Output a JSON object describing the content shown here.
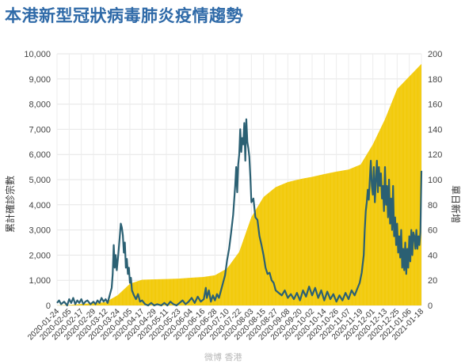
{
  "header": {
    "title": "本港新型冠狀病毒肺炎疫情趨勢"
  },
  "watermark": "微博 香港",
  "chart_data": {
    "type": "area+line",
    "title": "本港新型冠狀病毒肺炎疫情趨勢",
    "ylabel_left": "累計確診宗數",
    "ylabel_right": "單日新增",
    "ylim_left": [
      0,
      10000
    ],
    "ylim_right": [
      0,
      200
    ],
    "yticks_left": [
      "0",
      "1,000",
      "2,000",
      "3,000",
      "4,000",
      "5,000",
      "6,000",
      "7,000",
      "8,000",
      "9,000",
      "10,000"
    ],
    "yticks_right": [
      "0",
      "20",
      "40",
      "60",
      "80",
      "100",
      "120",
      "140",
      "160",
      "180",
      "200"
    ],
    "xticks": [
      "2020-01-24",
      "2020-02-05",
      "2020-02-17",
      "2020-02-29",
      "2020-03-12",
      "2020-03-24",
      "2020-04-05",
      "2020-04-17",
      "2020-04-29",
      "2020-05-11",
      "2020-05-23",
      "2020-06-04",
      "2020-06-16",
      "2020-06-28",
      "2020-07-10",
      "2020-07-22",
      "2020-08-03",
      "2020-08-15",
      "2020-08-27",
      "2020-09-08",
      "2020-09-20",
      "2020-10-02",
      "2020-10-14",
      "2020-10-26",
      "2020-11-07",
      "2020-11-19",
      "2020-12-01",
      "2020-12-13",
      "2020-12-25",
      "2021-01-06",
      "2021-01-18"
    ],
    "colors": {
      "cumulative": "#f2c800",
      "daily": "#2b6073"
    },
    "grid": true,
    "series": [
      {
        "axis": "left",
        "kind": "area",
        "points": [
          [
            "2020-01-24",
            5
          ],
          [
            "2020-02-05",
            21
          ],
          [
            "2020-02-17",
            60
          ],
          [
            "2020-02-29",
            95
          ],
          [
            "2020-03-12",
            130
          ],
          [
            "2020-03-24",
            410
          ],
          [
            "2020-04-05",
            860
          ],
          [
            "2020-04-17",
            1020
          ],
          [
            "2020-04-29",
            1038
          ],
          [
            "2020-05-11",
            1050
          ],
          [
            "2020-05-23",
            1066
          ],
          [
            "2020-06-04",
            1100
          ],
          [
            "2020-06-16",
            1130
          ],
          [
            "2020-06-28",
            1200
          ],
          [
            "2020-07-10",
            1470
          ],
          [
            "2020-07-22",
            2130
          ],
          [
            "2020-08-03",
            3510
          ],
          [
            "2020-08-15",
            4310
          ],
          [
            "2020-08-27",
            4700
          ],
          [
            "2020-09-08",
            4900
          ],
          [
            "2020-09-20",
            5020
          ],
          [
            "2020-10-02",
            5110
          ],
          [
            "2020-10-14",
            5220
          ],
          [
            "2020-10-26",
            5320
          ],
          [
            "2020-11-07",
            5400
          ],
          [
            "2020-11-19",
            5600
          ],
          [
            "2020-12-01",
            6400
          ],
          [
            "2020-12-13",
            7400
          ],
          [
            "2020-12-25",
            8600
          ],
          [
            "2021-01-06",
            9100
          ],
          [
            "2021-01-18",
            9600
          ]
        ]
      },
      {
        "axis": "right",
        "kind": "line",
        "points": [
          [
            "2020-01-24",
            2
          ],
          [
            "2020-01-26",
            4
          ],
          [
            "2020-01-28",
            1
          ],
          [
            "2020-01-31",
            3
          ],
          [
            "2020-02-03",
            0
          ],
          [
            "2020-02-05",
            5
          ],
          [
            "2020-02-07",
            2
          ],
          [
            "2020-02-09",
            6
          ],
          [
            "2020-02-11",
            1
          ],
          [
            "2020-02-13",
            4
          ],
          [
            "2020-02-15",
            2
          ],
          [
            "2020-02-17",
            5
          ],
          [
            "2020-02-19",
            1
          ],
          [
            "2020-02-21",
            3
          ],
          [
            "2020-02-23",
            4
          ],
          [
            "2020-02-26",
            1
          ],
          [
            "2020-02-29",
            3
          ],
          [
            "2020-03-02",
            1
          ],
          [
            "2020-03-04",
            4
          ],
          [
            "2020-03-06",
            2
          ],
          [
            "2020-03-08",
            6
          ],
          [
            "2020-03-10",
            3
          ],
          [
            "2020-03-12",
            5
          ],
          [
            "2020-03-14",
            2
          ],
          [
            "2020-03-16",
            8
          ],
          [
            "2020-03-18",
            14
          ],
          [
            "2020-03-19",
            25
          ],
          [
            "2020-03-20",
            48
          ],
          [
            "2020-03-21",
            30
          ],
          [
            "2020-03-22",
            40
          ],
          [
            "2020-03-23",
            28
          ],
          [
            "2020-03-24",
            36
          ],
          [
            "2020-03-25",
            45
          ],
          [
            "2020-03-26",
            55
          ],
          [
            "2020-03-27",
            65
          ],
          [
            "2020-03-28",
            62
          ],
          [
            "2020-03-29",
            56
          ],
          [
            "2020-03-30",
            42
          ],
          [
            "2020-03-31",
            50
          ],
          [
            "2020-04-01",
            30
          ],
          [
            "2020-04-02",
            37
          ],
          [
            "2020-04-03",
            25
          ],
          [
            "2020-04-04",
            30
          ],
          [
            "2020-04-05",
            18
          ],
          [
            "2020-04-06",
            22
          ],
          [
            "2020-04-07",
            12
          ],
          [
            "2020-04-09",
            8
          ],
          [
            "2020-04-11",
            5
          ],
          [
            "2020-04-13",
            9
          ],
          [
            "2020-04-15",
            3
          ],
          [
            "2020-04-17",
            4
          ],
          [
            "2020-04-20",
            1
          ],
          [
            "2020-04-23",
            0
          ],
          [
            "2020-04-26",
            2
          ],
          [
            "2020-04-29",
            0
          ],
          [
            "2020-05-02",
            1
          ],
          [
            "2020-05-06",
            0
          ],
          [
            "2020-05-09",
            2
          ],
          [
            "2020-05-12",
            0
          ],
          [
            "2020-05-15",
            3
          ],
          [
            "2020-05-18",
            1
          ],
          [
            "2020-05-21",
            0
          ],
          [
            "2020-05-24",
            2
          ],
          [
            "2020-05-27",
            4
          ],
          [
            "2020-05-30",
            1
          ],
          [
            "2020-06-02",
            3
          ],
          [
            "2020-06-05",
            6
          ],
          [
            "2020-06-08",
            2
          ],
          [
            "2020-06-11",
            7
          ],
          [
            "2020-06-14",
            3
          ],
          [
            "2020-06-17",
            5
          ],
          [
            "2020-06-19",
            14
          ],
          [
            "2020-06-20",
            6
          ],
          [
            "2020-06-22",
            12
          ],
          [
            "2020-06-24",
            3
          ],
          [
            "2020-06-26",
            8
          ],
          [
            "2020-06-28",
            4
          ],
          [
            "2020-06-30",
            9
          ],
          [
            "2020-07-02",
            6
          ],
          [
            "2020-07-04",
            12
          ],
          [
            "2020-07-06",
            18
          ],
          [
            "2020-07-08",
            24
          ],
          [
            "2020-07-10",
            36
          ],
          [
            "2020-07-12",
            45
          ],
          [
            "2020-07-14",
            58
          ],
          [
            "2020-07-16",
            72
          ],
          [
            "2020-07-18",
            95
          ],
          [
            "2020-07-19",
            110
          ],
          [
            "2020-07-20",
            90
          ],
          [
            "2020-07-21",
            112
          ],
          [
            "2020-07-22",
            120
          ],
          [
            "2020-07-23",
            140
          ],
          [
            "2020-07-24",
            122
          ],
          [
            "2020-07-25",
            133
          ],
          [
            "2020-07-26",
            128
          ],
          [
            "2020-07-27",
            145
          ],
          [
            "2020-07-28",
            115
          ],
          [
            "2020-07-29",
            148
          ],
          [
            "2020-07-30",
            130
          ],
          [
            "2020-07-31",
            125
          ],
          [
            "2020-08-01",
            118
          ],
          [
            "2020-08-02",
            102
          ],
          [
            "2020-08-03",
            82
          ],
          [
            "2020-08-05",
            85
          ],
          [
            "2020-08-07",
            70
          ],
          [
            "2020-08-09",
            68
          ],
          [
            "2020-08-11",
            55
          ],
          [
            "2020-08-13",
            48
          ],
          [
            "2020-08-15",
            40
          ],
          [
            "2020-08-17",
            30
          ],
          [
            "2020-08-19",
            25
          ],
          [
            "2020-08-21",
            26
          ],
          [
            "2020-08-23",
            20
          ],
          [
            "2020-08-25",
            18
          ],
          [
            "2020-08-27",
            12
          ],
          [
            "2020-08-30",
            10
          ],
          [
            "2020-09-02",
            8
          ],
          [
            "2020-09-05",
            12
          ],
          [
            "2020-09-08",
            6
          ],
          [
            "2020-09-11",
            9
          ],
          [
            "2020-09-14",
            5
          ],
          [
            "2020-09-17",
            10
          ],
          [
            "2020-09-20",
            4
          ],
          [
            "2020-09-23",
            12
          ],
          [
            "2020-09-26",
            7
          ],
          [
            "2020-09-29",
            15
          ],
          [
            "2020-10-02",
            8
          ],
          [
            "2020-10-05",
            14
          ],
          [
            "2020-10-08",
            6
          ],
          [
            "2020-10-11",
            12
          ],
          [
            "2020-10-14",
            4
          ],
          [
            "2020-10-17",
            11
          ],
          [
            "2020-10-20",
            5
          ],
          [
            "2020-10-23",
            9
          ],
          [
            "2020-10-26",
            3
          ],
          [
            "2020-10-29",
            8
          ],
          [
            "2020-11-01",
            4
          ],
          [
            "2020-11-04",
            10
          ],
          [
            "2020-11-07",
            5
          ],
          [
            "2020-11-10",
            12
          ],
          [
            "2020-11-13",
            8
          ],
          [
            "2020-11-16",
            14
          ],
          [
            "2020-11-18",
            18
          ],
          [
            "2020-11-20",
            26
          ],
          [
            "2020-11-22",
            40
          ],
          [
            "2020-11-23",
            60
          ],
          [
            "2020-11-24",
            75
          ],
          [
            "2020-11-25",
            82
          ],
          [
            "2020-11-26",
            92
          ],
          [
            "2020-11-27",
            84
          ],
          [
            "2020-11-28",
            100
          ],
          [
            "2020-11-29",
            115
          ],
          [
            "2020-11-30",
            95
          ],
          [
            "2020-12-01",
            88
          ],
          [
            "2020-12-02",
            110
          ],
          [
            "2020-12-03",
            82
          ],
          [
            "2020-12-04",
            100
          ],
          [
            "2020-12-05",
            115
          ],
          [
            "2020-12-06",
            90
          ],
          [
            "2020-12-07",
            110
          ],
          [
            "2020-12-08",
            95
          ],
          [
            "2020-12-09",
            105
          ],
          [
            "2020-12-10",
            85
          ],
          [
            "2020-12-11",
            95
          ],
          [
            "2020-12-12",
            75
          ],
          [
            "2020-12-13",
            110
          ],
          [
            "2020-12-14",
            80
          ],
          [
            "2020-12-15",
            95
          ],
          [
            "2020-12-16",
            70
          ],
          [
            "2020-12-17",
            100
          ],
          [
            "2020-12-18",
            65
          ],
          [
            "2020-12-19",
            85
          ],
          [
            "2020-12-20",
            60
          ],
          [
            "2020-12-21",
            95
          ],
          [
            "2020-12-22",
            55
          ],
          [
            "2020-12-23",
            70
          ],
          [
            "2020-12-24",
            48
          ],
          [
            "2020-12-25",
            65
          ],
          [
            "2020-12-26",
            42
          ],
          [
            "2020-12-27",
            55
          ],
          [
            "2020-12-28",
            38
          ],
          [
            "2020-12-29",
            60
          ],
          [
            "2020-12-30",
            30
          ],
          [
            "2020-12-31",
            45
          ],
          [
            "2021-01-01",
            28
          ],
          [
            "2021-01-02",
            50
          ],
          [
            "2021-01-03",
            25
          ],
          [
            "2021-01-04",
            45
          ],
          [
            "2021-01-05",
            30
          ],
          [
            "2021-01-06",
            55
          ],
          [
            "2021-01-07",
            35
          ],
          [
            "2021-01-08",
            60
          ],
          [
            "2021-01-09",
            40
          ],
          [
            "2021-01-10",
            58
          ],
          [
            "2021-01-11",
            55
          ],
          [
            "2021-01-12",
            45
          ],
          [
            "2021-01-13",
            60
          ],
          [
            "2021-01-14",
            45
          ],
          [
            "2021-01-15",
            55
          ],
          [
            "2021-01-16",
            48
          ],
          [
            "2021-01-17",
            58
          ],
          [
            "2021-01-18",
            107
          ]
        ]
      }
    ]
  }
}
